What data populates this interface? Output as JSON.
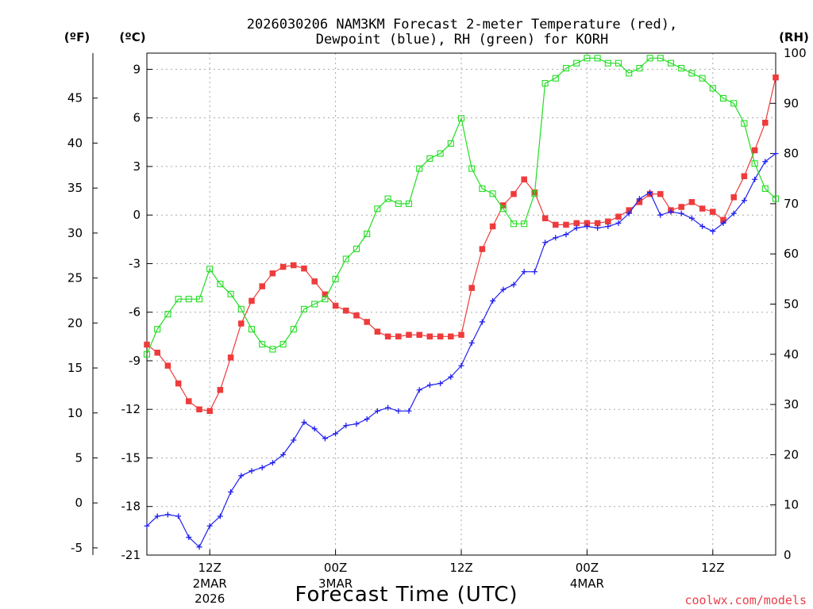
{
  "chart_data": {
    "type": "line",
    "title_line1": "2026030206 NAM3KM Forecast 2-meter Temperature (red),",
    "title_line2": "Dewpoint (blue), RH (green) for KORH",
    "left_outer_unit": "(ºF)",
    "left_inner_unit": "(ºC)",
    "right_unit": "(RH)",
    "xlabel": "Forecast Time (UTC)",
    "credit": "coolwx.com/models",
    "x_unit": "forecast hour",
    "xlim": [
      0,
      60
    ],
    "ylim_c": [
      -21,
      10
    ],
    "ylim_rh": [
      0,
      100
    ],
    "y_ticks_c": [
      "9",
      "6",
      "3",
      "0",
      "-3",
      "-6",
      "-9",
      "-12",
      "-15",
      "-18",
      "-21"
    ],
    "y_ticks_f": [
      "45",
      "40",
      "35",
      "30",
      "25",
      "20",
      "15",
      "10",
      "5",
      "0",
      "-5"
    ],
    "y_ticks_rh": [
      "100",
      "90",
      "80",
      "70",
      "60",
      "50",
      "40",
      "30",
      "20",
      "10",
      "0"
    ],
    "x_ticks": [
      {
        "hour": 6,
        "label": "12Z",
        "sub1": "2MAR",
        "sub2": "2026"
      },
      {
        "hour": 18,
        "label": "00Z",
        "sub1": "3MAR",
        "sub2": ""
      },
      {
        "hour": 30,
        "label": "12Z",
        "sub1": "",
        "sub2": ""
      },
      {
        "hour": 42,
        "label": "00Z",
        "sub1": "4MAR",
        "sub2": ""
      },
      {
        "hour": 54,
        "label": "12Z",
        "sub1": "",
        "sub2": ""
      }
    ],
    "x_hours": [
      0,
      1,
      2,
      3,
      4,
      5,
      6,
      7,
      8,
      9,
      10,
      11,
      12,
      13,
      14,
      15,
      16,
      17,
      18,
      19,
      20,
      21,
      22,
      23,
      24,
      25,
      26,
      27,
      28,
      29,
      30,
      31,
      32,
      33,
      34,
      35,
      36,
      37,
      38,
      39,
      40,
      41,
      42,
      43,
      44,
      45,
      46,
      47,
      48,
      49,
      50,
      51,
      52,
      53,
      54,
      55,
      56,
      57,
      58,
      59,
      60
    ],
    "series": [
      {
        "name": "2-meter Temperature",
        "color": "#ee3b3b",
        "axis": "celsius",
        "marker": "filled-square",
        "values": [
          -8.0,
          -8.5,
          -9.3,
          -10.4,
          -11.5,
          -12.0,
          -12.1,
          -10.8,
          -8.8,
          -6.7,
          -5.3,
          -4.4,
          -3.6,
          -3.2,
          -3.1,
          -3.3,
          -4.1,
          -4.9,
          -5.6,
          -5.9,
          -6.2,
          -6.6,
          -7.2,
          -7.5,
          -7.5,
          -7.4,
          -7.4,
          -7.5,
          -7.5,
          -7.5,
          -7.4,
          -4.5,
          -2.1,
          -0.7,
          0.6,
          1.3,
          2.2,
          1.4,
          -0.2,
          -0.6,
          -0.6,
          -0.5,
          -0.5,
          -0.5,
          -0.4,
          -0.1,
          0.3,
          0.8,
          1.3,
          1.3,
          0.3,
          0.5,
          0.8,
          0.4,
          0.2,
          -0.3,
          1.1,
          2.4,
          4.0,
          5.7,
          8.5
        ]
      },
      {
        "name": "Dewpoint",
        "color": "#2020ee",
        "axis": "celsius",
        "marker": "plus",
        "values": [
          -19.2,
          -18.6,
          -18.5,
          -18.6,
          -19.9,
          -20.5,
          -19.2,
          -18.6,
          -17.1,
          -16.1,
          -15.8,
          -15.6,
          -15.3,
          -14.8,
          -13.9,
          -12.8,
          -13.2,
          -13.8,
          -13.5,
          -13.0,
          -12.9,
          -12.6,
          -12.1,
          -11.9,
          -12.1,
          -12.1,
          -10.8,
          -10.5,
          -10.4,
          -10.0,
          -9.3,
          -7.9,
          -6.6,
          -5.3,
          -4.6,
          -4.3,
          -3.5,
          -3.5,
          -1.7,
          -1.4,
          -1.2,
          -0.8,
          -0.7,
          -0.8,
          -0.7,
          -0.5,
          0.1,
          1.0,
          1.4,
          0.0,
          0.2,
          0.1,
          -0.2,
          -0.7,
          -1.0,
          -0.5,
          0.1,
          0.9,
          2.2,
          3.3,
          3.8
        ]
      },
      {
        "name": "RH",
        "color": "#22dd22",
        "axis": "rh",
        "marker": "open-square",
        "values": [
          40,
          45,
          48,
          51,
          51,
          51,
          57,
          54,
          52,
          49,
          45,
          42,
          41,
          42,
          45,
          49,
          50,
          51,
          55,
          59,
          61,
          64,
          69,
          71,
          70,
          70,
          77,
          79,
          80,
          82,
          87,
          77,
          73,
          72,
          69,
          66,
          66,
          72,
          94,
          95,
          97,
          98,
          99,
          99,
          98,
          98,
          96,
          97,
          99,
          99,
          98,
          97,
          96,
          95,
          93,
          91,
          90,
          86,
          78,
          73,
          71
        ]
      }
    ]
  }
}
